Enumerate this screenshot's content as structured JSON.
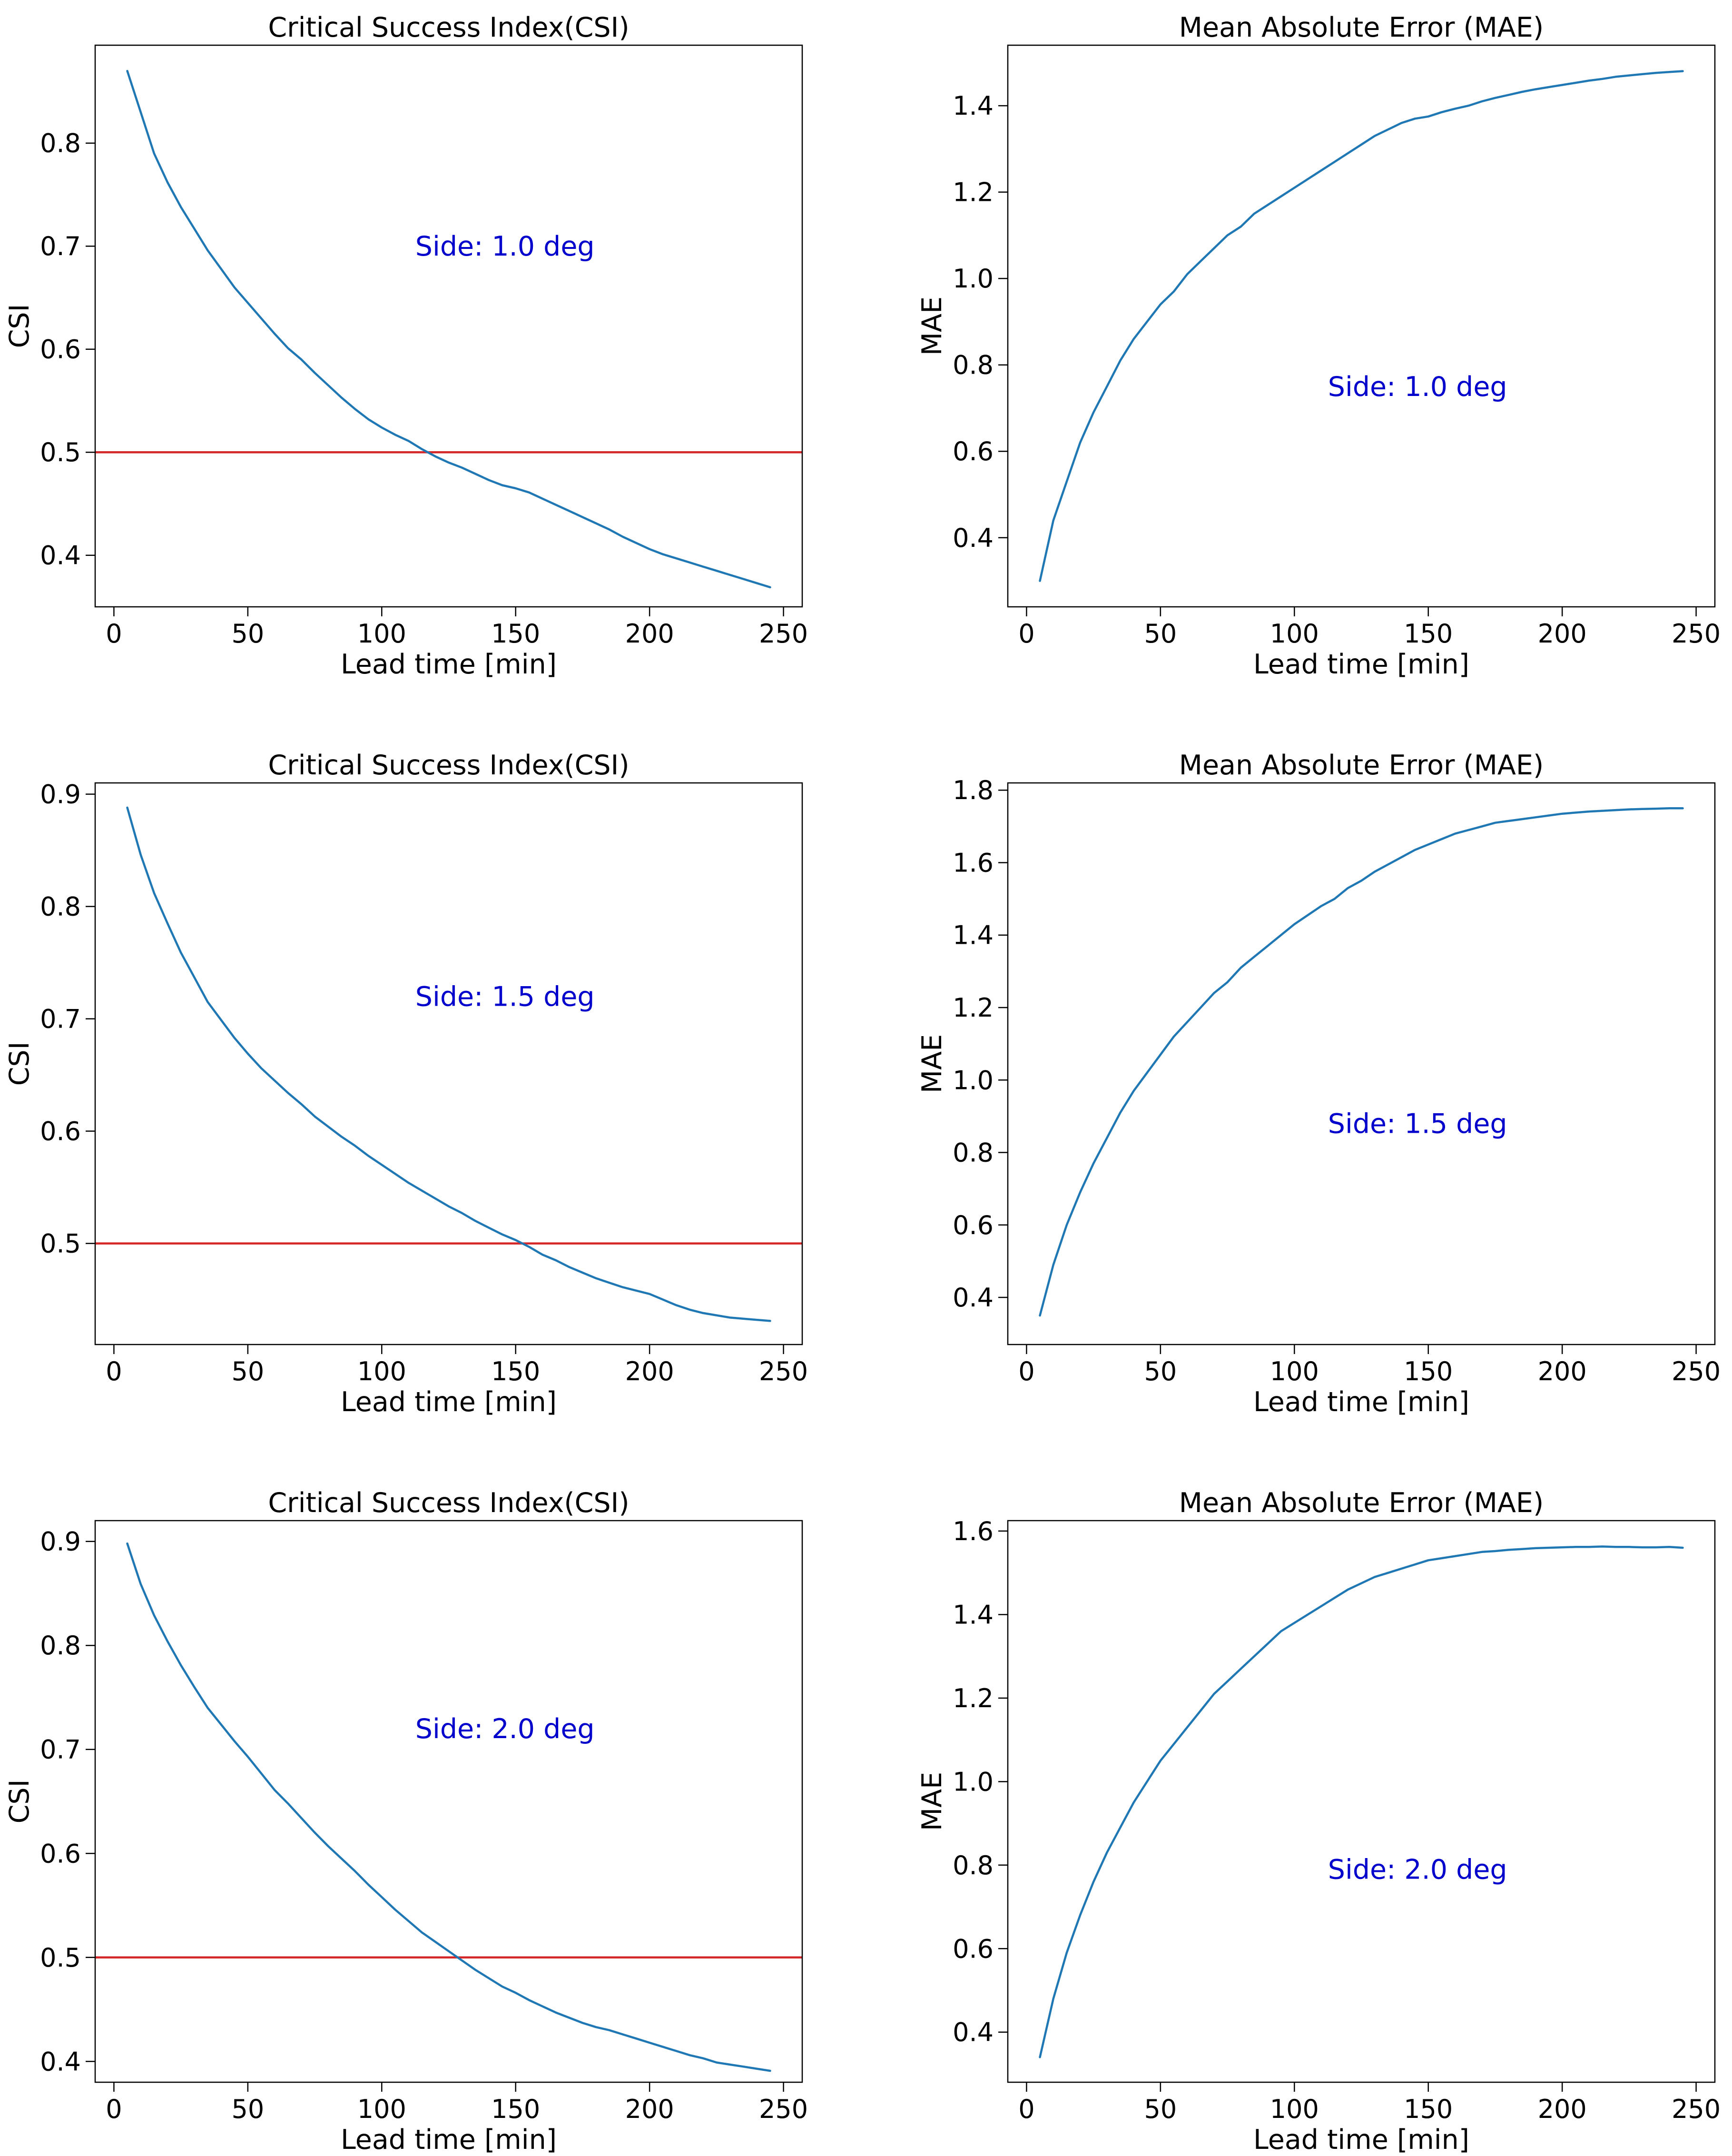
{
  "chart_data": [
    {
      "type": "line",
      "title": "Critical Success Index(CSI)",
      "xlabel": "Lead time [min]",
      "ylabel": "CSI",
      "xlim": [
        -7,
        257
      ],
      "ylim": [
        0.35,
        0.895
      ],
      "xticks": [
        0,
        50,
        100,
        150,
        200,
        250
      ],
      "xtick_labels": [
        "0",
        "50",
        "100",
        "150",
        "200",
        "250"
      ],
      "yticks": [
        0.4,
        0.5,
        0.6,
        0.7,
        0.8
      ],
      "ytick_labels": [
        "0.4",
        "0.5",
        "0.6",
        "0.7",
        "0.8"
      ],
      "annotation": "Side: 1.0 deg",
      "annotation_xy": [
        146,
        0.7
      ],
      "reference_line": 0.5,
      "series": [
        {
          "name": "CSI",
          "x": [
            5,
            10,
            15,
            20,
            25,
            30,
            35,
            40,
            45,
            50,
            55,
            60,
            65,
            70,
            75,
            80,
            85,
            90,
            95,
            100,
            105,
            110,
            115,
            120,
            125,
            130,
            135,
            140,
            145,
            150,
            155,
            160,
            165,
            170,
            175,
            180,
            185,
            190,
            195,
            200,
            205,
            210,
            215,
            220,
            225,
            230,
            235,
            240,
            245
          ],
          "values": [
            0.87,
            0.83,
            0.79,
            0.762,
            0.738,
            0.717,
            0.696,
            0.678,
            0.66,
            0.645,
            0.63,
            0.615,
            0.601,
            0.59,
            0.577,
            0.565,
            0.553,
            0.542,
            0.532,
            0.524,
            0.517,
            0.511,
            0.503,
            0.496,
            0.49,
            0.485,
            0.479,
            0.473,
            0.468,
            0.465,
            0.461,
            0.455,
            0.449,
            0.443,
            0.437,
            0.431,
            0.425,
            0.418,
            0.412,
            0.406,
            0.401,
            0.397,
            0.393,
            0.389,
            0.385,
            0.381,
            0.377,
            0.373,
            0.369
          ]
        }
      ]
    },
    {
      "type": "line",
      "title": "Mean Absolute Error (MAE)",
      "xlabel": "Lead time [min]",
      "ylabel": "MAE",
      "xlim": [
        -7,
        257
      ],
      "ylim": [
        0.24,
        1.54
      ],
      "xticks": [
        0,
        50,
        100,
        150,
        200,
        250
      ],
      "xtick_labels": [
        "0",
        "50",
        "100",
        "150",
        "200",
        "250"
      ],
      "yticks": [
        0.4,
        0.6,
        0.8,
        1.0,
        1.2,
        1.4
      ],
      "ytick_labels": [
        "0.4",
        "0.6",
        "0.8",
        "1.0",
        "1.2",
        "1.4"
      ],
      "annotation": "Side: 1.0 deg",
      "annotation_xy": [
        146,
        0.75
      ],
      "series": [
        {
          "name": "MAE",
          "x": [
            5,
            10,
            15,
            20,
            25,
            30,
            35,
            40,
            45,
            50,
            55,
            60,
            65,
            70,
            75,
            80,
            85,
            90,
            95,
            100,
            105,
            110,
            115,
            120,
            125,
            130,
            135,
            140,
            145,
            150,
            155,
            160,
            165,
            170,
            175,
            180,
            185,
            190,
            195,
            200,
            205,
            210,
            215,
            220,
            225,
            230,
            235,
            240,
            245
          ],
          "values": [
            0.3,
            0.44,
            0.53,
            0.62,
            0.69,
            0.75,
            0.81,
            0.86,
            0.9,
            0.94,
            0.97,
            1.01,
            1.04,
            1.07,
            1.1,
            1.12,
            1.15,
            1.17,
            1.19,
            1.21,
            1.23,
            1.25,
            1.27,
            1.29,
            1.31,
            1.33,
            1.345,
            1.36,
            1.37,
            1.375,
            1.385,
            1.393,
            1.4,
            1.41,
            1.418,
            1.425,
            1.432,
            1.438,
            1.443,
            1.448,
            1.453,
            1.458,
            1.462,
            1.467,
            1.47,
            1.473,
            1.476,
            1.478,
            1.48
          ]
        }
      ]
    },
    {
      "type": "line",
      "title": "Critical Success Index(CSI)",
      "xlabel": "Lead time [min]",
      "ylabel": "CSI",
      "xlim": [
        -7,
        257
      ],
      "ylim": [
        0.41,
        0.91
      ],
      "xticks": [
        0,
        50,
        100,
        150,
        200,
        250
      ],
      "xtick_labels": [
        "0",
        "50",
        "100",
        "150",
        "200",
        "250"
      ],
      "yticks": [
        0.5,
        0.6,
        0.7,
        0.8,
        0.9
      ],
      "ytick_labels": [
        "0.5",
        "0.6",
        "0.7",
        "0.8",
        "0.9"
      ],
      "annotation": "Side: 1.5 deg",
      "annotation_xy": [
        146,
        0.72
      ],
      "reference_line": 0.5,
      "series": [
        {
          "name": "CSI",
          "x": [
            5,
            10,
            15,
            20,
            25,
            30,
            35,
            40,
            45,
            50,
            55,
            60,
            65,
            70,
            75,
            80,
            85,
            90,
            95,
            100,
            105,
            110,
            115,
            120,
            125,
            130,
            135,
            140,
            145,
            150,
            155,
            160,
            165,
            170,
            175,
            180,
            185,
            190,
            195,
            200,
            205,
            210,
            215,
            220,
            225,
            230,
            235,
            240,
            245
          ],
          "values": [
            0.888,
            0.846,
            0.812,
            0.785,
            0.759,
            0.737,
            0.715,
            0.699,
            0.683,
            0.669,
            0.656,
            0.645,
            0.634,
            0.624,
            0.613,
            0.604,
            0.595,
            0.587,
            0.578,
            0.57,
            0.562,
            0.554,
            0.547,
            0.54,
            0.533,
            0.527,
            0.52,
            0.514,
            0.508,
            0.503,
            0.497,
            0.49,
            0.485,
            0.479,
            0.474,
            0.469,
            0.465,
            0.461,
            0.458,
            0.455,
            0.45,
            0.445,
            0.441,
            0.438,
            0.436,
            0.434,
            0.433,
            0.432,
            0.431
          ]
        }
      ]
    },
    {
      "type": "line",
      "title": "Mean Absolute Error (MAE)",
      "xlabel": "Lead time [min]",
      "ylabel": "MAE",
      "xlim": [
        -7,
        257
      ],
      "ylim": [
        0.27,
        1.82
      ],
      "xticks": [
        0,
        50,
        100,
        150,
        200,
        250
      ],
      "xtick_labels": [
        "0",
        "50",
        "100",
        "150",
        "200",
        "250"
      ],
      "yticks": [
        0.4,
        0.6,
        0.8,
        1.0,
        1.2,
        1.4,
        1.6,
        1.8
      ],
      "ytick_labels": [
        "0.4",
        "0.6",
        "0.8",
        "1.0",
        "1.2",
        "1.4",
        "1.6",
        "1.8"
      ],
      "annotation": "Side: 1.5 deg",
      "annotation_xy": [
        146,
        0.88
      ],
      "series": [
        {
          "name": "MAE",
          "x": [
            5,
            10,
            15,
            20,
            25,
            30,
            35,
            40,
            45,
            50,
            55,
            60,
            65,
            70,
            75,
            80,
            85,
            90,
            95,
            100,
            105,
            110,
            115,
            120,
            125,
            130,
            135,
            140,
            145,
            150,
            155,
            160,
            165,
            170,
            175,
            180,
            185,
            190,
            195,
            200,
            205,
            210,
            215,
            220,
            225,
            230,
            235,
            240,
            245
          ],
          "values": [
            0.35,
            0.49,
            0.6,
            0.69,
            0.77,
            0.84,
            0.91,
            0.97,
            1.02,
            1.07,
            1.12,
            1.16,
            1.2,
            1.24,
            1.27,
            1.31,
            1.34,
            1.37,
            1.4,
            1.43,
            1.455,
            1.48,
            1.5,
            1.53,
            1.55,
            1.575,
            1.595,
            1.615,
            1.635,
            1.65,
            1.665,
            1.68,
            1.69,
            1.7,
            1.71,
            1.715,
            1.72,
            1.725,
            1.73,
            1.735,
            1.738,
            1.741,
            1.743,
            1.745,
            1.747,
            1.748,
            1.749,
            1.75,
            1.75
          ]
        }
      ]
    },
    {
      "type": "line",
      "title": "Critical Success Index(CSI)",
      "xlabel": "Lead time [min]",
      "ylabel": "CSI",
      "xlim": [
        -7,
        257
      ],
      "ylim": [
        0.38,
        0.92
      ],
      "xticks": [
        0,
        50,
        100,
        150,
        200,
        250
      ],
      "xtick_labels": [
        "0",
        "50",
        "100",
        "150",
        "200",
        "250"
      ],
      "yticks": [
        0.4,
        0.5,
        0.6,
        0.7,
        0.8,
        0.9
      ],
      "ytick_labels": [
        "0.4",
        "0.5",
        "0.6",
        "0.7",
        "0.8",
        "0.9"
      ],
      "annotation": "Side: 2.0 deg",
      "annotation_xy": [
        146,
        0.72
      ],
      "reference_line": 0.5,
      "series": [
        {
          "name": "CSI",
          "x": [
            5,
            10,
            15,
            20,
            25,
            30,
            35,
            40,
            45,
            50,
            55,
            60,
            65,
            70,
            75,
            80,
            85,
            90,
            95,
            100,
            105,
            110,
            115,
            120,
            125,
            130,
            135,
            140,
            145,
            150,
            155,
            160,
            165,
            170,
            175,
            180,
            185,
            190,
            195,
            200,
            205,
            210,
            215,
            220,
            225,
            230,
            235,
            240,
            245
          ],
          "values": [
            0.898,
            0.859,
            0.829,
            0.804,
            0.781,
            0.76,
            0.74,
            0.724,
            0.708,
            0.693,
            0.677,
            0.661,
            0.648,
            0.634,
            0.62,
            0.607,
            0.595,
            0.583,
            0.57,
            0.558,
            0.546,
            0.535,
            0.524,
            0.515,
            0.506,
            0.497,
            0.488,
            0.48,
            0.472,
            0.466,
            0.459,
            0.453,
            0.447,
            0.442,
            0.437,
            0.433,
            0.43,
            0.426,
            0.422,
            0.418,
            0.414,
            0.41,
            0.406,
            0.403,
            0.399,
            0.397,
            0.395,
            0.393,
            0.391
          ]
        }
      ]
    },
    {
      "type": "line",
      "title": "Mean Absolute Error (MAE)",
      "xlabel": "Lead time [min]",
      "ylabel": "MAE",
      "xlim": [
        -7,
        257
      ],
      "ylim": [
        0.28,
        1.625
      ],
      "xticks": [
        0,
        50,
        100,
        150,
        200,
        250
      ],
      "xtick_labels": [
        "0",
        "50",
        "100",
        "150",
        "200",
        "250"
      ],
      "yticks": [
        0.4,
        0.6,
        0.8,
        1.0,
        1.2,
        1.4,
        1.6
      ],
      "ytick_labels": [
        "0.4",
        "0.6",
        "0.8",
        "1.0",
        "1.2",
        "1.4",
        "1.6"
      ],
      "annotation": "Side: 2.0 deg",
      "annotation_xy": [
        146,
        0.79
      ],
      "series": [
        {
          "name": "MAE",
          "x": [
            5,
            10,
            15,
            20,
            25,
            30,
            35,
            40,
            45,
            50,
            55,
            60,
            65,
            70,
            75,
            80,
            85,
            90,
            95,
            100,
            105,
            110,
            115,
            120,
            125,
            130,
            135,
            140,
            145,
            150,
            155,
            160,
            165,
            170,
            175,
            180,
            185,
            190,
            195,
            200,
            205,
            210,
            215,
            220,
            225,
            230,
            235,
            240,
            245
          ],
          "values": [
            0.34,
            0.48,
            0.59,
            0.68,
            0.76,
            0.83,
            0.89,
            0.95,
            1.0,
            1.05,
            1.09,
            1.13,
            1.17,
            1.21,
            1.24,
            1.27,
            1.3,
            1.33,
            1.36,
            1.38,
            1.4,
            1.42,
            1.44,
            1.46,
            1.475,
            1.49,
            1.5,
            1.51,
            1.52,
            1.53,
            1.535,
            1.54,
            1.545,
            1.55,
            1.552,
            1.555,
            1.557,
            1.559,
            1.56,
            1.561,
            1.562,
            1.562,
            1.563,
            1.562,
            1.562,
            1.561,
            1.561,
            1.562,
            1.56
          ]
        }
      ]
    }
  ]
}
